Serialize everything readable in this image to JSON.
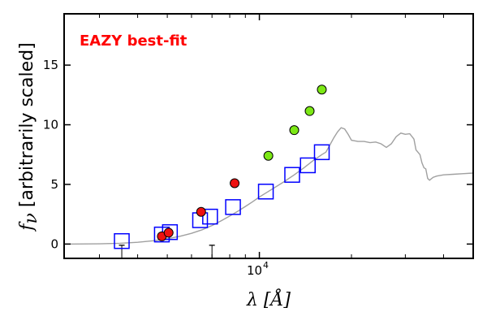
{
  "chart_data": {
    "type": "scatter",
    "annotation": "EAZY best-fit",
    "annotation_color": "#ff0000",
    "xlabel_main": "λ [",
    "xlabel_unit": "Å",
    "xlabel_close": "]",
    "ylabel_symbol": "f",
    "ylabel_sub": "ν",
    "ylabel_text": " [arbitrarily scaled]",
    "xscale": "log",
    "xlim": [
      2300,
      50000
    ],
    "ylim": [
      -1.2,
      19.3
    ],
    "yticks": [
      0,
      5,
      10,
      15
    ],
    "ytick_labels": [
      "0",
      "5",
      "10",
      "15"
    ],
    "xtick_major": 10000,
    "xtick_major_label": "10",
    "xtick_major_exp": "4",
    "xticks_minor": [
      3000,
      4000,
      5000,
      6000,
      7000,
      8000,
      9000,
      20000,
      30000,
      40000
    ],
    "grid": false,
    "template_color": "#a0a0a0",
    "template_spectrum": [
      [
        2300,
        0.0
      ],
      [
        3000,
        0.02
      ],
      [
        3500,
        0.07
      ],
      [
        4000,
        0.15
      ],
      [
        4500,
        0.28
      ],
      [
        5000,
        0.45
      ],
      [
        5500,
        0.65
      ],
      [
        6000,
        0.9
      ],
      [
        6500,
        1.2
      ],
      [
        7000,
        1.55
      ],
      [
        7500,
        1.95
      ],
      [
        8000,
        2.35
      ],
      [
        8500,
        2.75
      ],
      [
        9000,
        3.15
      ],
      [
        9500,
        3.55
      ],
      [
        10000,
        3.95
      ],
      [
        11000,
        4.6
      ],
      [
        12000,
        5.2
      ],
      [
        13000,
        5.8
      ],
      [
        14000,
        6.4
      ],
      [
        15000,
        7.0
      ],
      [
        16000,
        7.5
      ],
      [
        16500,
        7.7
      ],
      [
        17000,
        8.3
      ],
      [
        17500,
        8.9
      ],
      [
        18000,
        9.4
      ],
      [
        18500,
        9.75
      ],
      [
        19000,
        9.65
      ],
      [
        19500,
        9.2
      ],
      [
        20000,
        8.7
      ],
      [
        21000,
        8.6
      ],
      [
        22000,
        8.6
      ],
      [
        23000,
        8.5
      ],
      [
        24000,
        8.55
      ],
      [
        25000,
        8.4
      ],
      [
        26000,
        8.1
      ],
      [
        27000,
        8.4
      ],
      [
        28000,
        9.0
      ],
      [
        29000,
        9.3
      ],
      [
        30000,
        9.2
      ],
      [
        31000,
        9.25
      ],
      [
        32000,
        8.8
      ],
      [
        32500,
        7.9
      ],
      [
        33500,
        7.5
      ],
      [
        34000,
        6.8
      ],
      [
        34500,
        6.4
      ],
      [
        35000,
        6.3
      ],
      [
        35500,
        5.5
      ],
      [
        36000,
        5.35
      ],
      [
        37000,
        5.6
      ],
      [
        38000,
        5.7
      ],
      [
        40000,
        5.8
      ],
      [
        43000,
        5.85
      ],
      [
        46000,
        5.9
      ],
      [
        50000,
        5.95
      ]
    ],
    "model_photometry_color": "#0000ff",
    "model_photometry": [
      [
        3550,
        0.25
      ],
      [
        4800,
        0.8
      ],
      [
        5100,
        1.0
      ],
      [
        6400,
        2.0
      ],
      [
        6900,
        2.3
      ],
      [
        8200,
        3.1
      ],
      [
        10500,
        4.4
      ],
      [
        12800,
        5.8
      ],
      [
        14400,
        6.6
      ],
      [
        16000,
        7.7
      ]
    ],
    "observed_red_color": "#ee1111",
    "observed_red": [
      [
        4800,
        0.65
      ],
      [
        5050,
        0.95
      ],
      [
        6450,
        2.7
      ],
      [
        8300,
        5.1
      ]
    ],
    "observed_green_color": "#7ce815",
    "observed_green": [
      [
        10700,
        7.4
      ],
      [
        13000,
        9.55
      ],
      [
        14600,
        11.15
      ],
      [
        16000,
        12.95
      ]
    ],
    "upper_limits_color": "#000000",
    "upper_limits": [
      [
        3550,
        -0.1
      ],
      [
        7000,
        -0.1
      ]
    ]
  }
}
